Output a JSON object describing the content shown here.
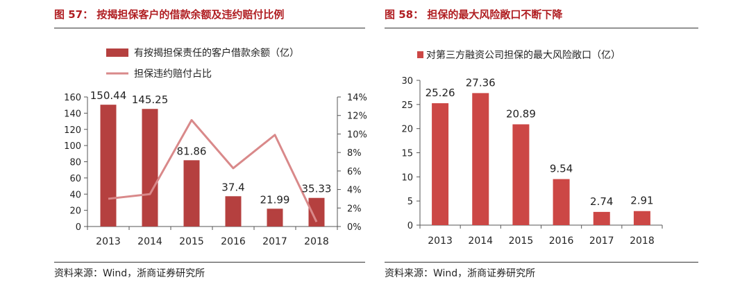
{
  "left": {
    "title": "图 57： 按揭担保客户的借款余额及违约赔付比例",
    "source": "资料来源：Wind，浙商证券研究所"
  },
  "right": {
    "title": "图 58： 担保的最大风险敞口不断下降",
    "source": "资料来源：Wind，浙商证券研究所"
  },
  "chart_data": [
    {
      "type": "bar",
      "categories": [
        "2013",
        "2014",
        "2015",
        "2016",
        "2017",
        "2018"
      ],
      "series": [
        {
          "name": "有按揭担保责任的客户借款余额（亿）",
          "kind": "bar",
          "axis": "left",
          "color": "#b5403f",
          "values": [
            150.44,
            145.25,
            81.86,
            37.4,
            21.99,
            35.33
          ],
          "labels": [
            "150.44",
            "145.25",
            "81.86",
            "37.4",
            "21.99",
            "35.33"
          ]
        },
        {
          "name": "担保违约赔付占比",
          "kind": "line",
          "axis": "right",
          "color": "#d9898a",
          "values": [
            3.0,
            3.5,
            11.5,
            6.3,
            9.9,
            0.5
          ]
        }
      ],
      "ylim": [
        0,
        160
      ],
      "yticks": [
        "0",
        "20",
        "40",
        "60",
        "80",
        "100",
        "120",
        "140",
        "160"
      ],
      "y2lim": [
        0,
        14
      ],
      "y2ticks": [
        "0%",
        "2%",
        "4%",
        "6%",
        "8%",
        "10%",
        "12%",
        "14%"
      ],
      "legend": "top",
      "grid": false
    },
    {
      "type": "bar",
      "categories": [
        "2013",
        "2014",
        "2015",
        "2016",
        "2017",
        "2018"
      ],
      "series": [
        {
          "name": "对第三方融资公司担保的最大风险敞口（亿）",
          "color": "#cc4745",
          "values": [
            25.26,
            27.36,
            20.89,
            9.54,
            2.74,
            2.91
          ],
          "labels": [
            "25.26",
            "27.36",
            "20.89",
            "9.54",
            "2.74",
            "2.91"
          ]
        }
      ],
      "ylim": [
        0,
        30
      ],
      "yticks": [
        "0",
        "5",
        "10",
        "15",
        "20",
        "25",
        "30"
      ],
      "legend": "top",
      "grid": false
    }
  ]
}
